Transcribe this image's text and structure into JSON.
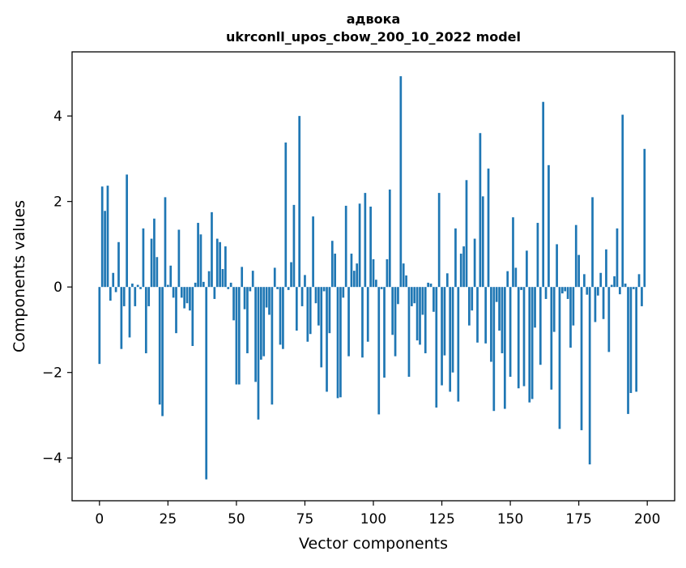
{
  "chart_data": {
    "type": "bar",
    "title_line1": "адвока",
    "title_line2": "ukrconll_upos_cbow_200_10_2022 model",
    "xlabel": "Vector components",
    "ylabel": "Components values",
    "xlim": [
      -10,
      210
    ],
    "ylim": [
      -5,
      5.5
    ],
    "xticks": [
      0,
      25,
      50,
      75,
      100,
      125,
      150,
      175,
      200
    ],
    "xtick_labels": [
      "0",
      "25",
      "50",
      "75",
      "100",
      "125",
      "150",
      "175",
      "200"
    ],
    "yticks": [
      -4,
      -2,
      0,
      2,
      4
    ],
    "ytick_labels": [
      "−4",
      "−2",
      "0",
      "2",
      "4"
    ],
    "bar_color": "#1f77b4",
    "grid": false,
    "x": [
      0,
      1,
      2,
      3,
      4,
      5,
      6,
      7,
      8,
      9,
      10,
      11,
      12,
      13,
      14,
      15,
      16,
      17,
      18,
      19,
      20,
      21,
      22,
      23,
      24,
      25,
      26,
      27,
      28,
      29,
      30,
      31,
      32,
      33,
      34,
      35,
      36,
      37,
      38,
      39,
      40,
      41,
      42,
      43,
      44,
      45,
      46,
      47,
      48,
      49,
      50,
      51,
      52,
      53,
      54,
      55,
      56,
      57,
      58,
      59,
      60,
      61,
      62,
      63,
      64,
      65,
      66,
      67,
      68,
      69,
      70,
      71,
      72,
      73,
      74,
      75,
      76,
      77,
      78,
      79,
      80,
      81,
      82,
      83,
      84,
      85,
      86,
      87,
      88,
      89,
      90,
      91,
      92,
      93,
      94,
      95,
      96,
      97,
      98,
      99,
      100,
      101,
      102,
      103,
      104,
      105,
      106,
      107,
      108,
      109,
      110,
      111,
      112,
      113,
      114,
      115,
      116,
      117,
      118,
      119,
      120,
      121,
      122,
      123,
      124,
      125,
      126,
      127,
      128,
      129,
      130,
      131,
      132,
      133,
      134,
      135,
      136,
      137,
      138,
      139,
      140,
      141,
      142,
      143,
      144,
      145,
      146,
      147,
      148,
      149,
      150,
      151,
      152,
      153,
      154,
      155,
      156,
      157,
      158,
      159,
      160,
      161,
      162,
      163,
      164,
      165,
      166,
      167,
      168,
      169,
      170,
      171,
      172,
      173,
      174,
      175,
      176,
      177,
      178,
      179,
      180,
      181,
      182,
      183,
      184,
      185,
      186,
      187,
      188,
      189,
      190,
      191,
      192,
      193,
      194,
      195,
      196,
      197,
      198,
      199
    ],
    "values": [
      -1.8,
      2.35,
      1.78,
      2.37,
      -0.32,
      0.33,
      -0.12,
      1.05,
      -1.45,
      -0.45,
      2.63,
      -1.18,
      0.08,
      -0.45,
      0.05,
      -0.05,
      1.37,
      -1.55,
      -0.45,
      1.13,
      1.6,
      0.7,
      -2.75,
      -3.02,
      2.1,
      0.05,
      0.5,
      -0.25,
      -1.08,
      1.34,
      -0.25,
      -0.5,
      -0.38,
      -0.55,
      -1.38,
      0.1,
      1.5,
      1.23,
      0.12,
      -4.5,
      0.37,
      1.75,
      -0.28,
      1.13,
      1.05,
      0.42,
      0.95,
      -0.05,
      0.1,
      -0.78,
      -2.28,
      -2.28,
      0.47,
      -0.52,
      -1.55,
      -0.1,
      0.38,
      -2.22,
      -3.1,
      -1.7,
      -1.62,
      -0.48,
      -0.65,
      -2.75,
      0.45,
      -0.05,
      -1.35,
      -1.45,
      3.38,
      -0.07,
      0.58,
      1.92,
      -1.02,
      4.0,
      -0.45,
      0.28,
      -1.28,
      -1.1,
      1.65,
      -0.38,
      -0.9,
      -1.88,
      -0.1,
      -2.45,
      -1.08,
      1.08,
      0.78,
      -2.6,
      -2.58,
      -0.25,
      1.9,
      -1.62,
      0.78,
      0.38,
      0.55,
      1.95,
      -1.65,
      2.2,
      -1.28,
      1.88,
      0.65,
      0.17,
      -2.98,
      -0.05,
      -2.12,
      0.65,
      2.28,
      -1.12,
      -1.62,
      -0.4,
      4.93,
      0.55,
      0.27,
      -2.1,
      -0.45,
      -0.38,
      -1.25,
      -1.35,
      -0.65,
      -1.55,
      0.1,
      0.08,
      -0.58,
      -2.82,
      2.2,
      -2.3,
      -1.6,
      0.32,
      -2.45,
      -2.0,
      1.37,
      -2.68,
      0.78,
      0.95,
      2.5,
      -0.9,
      -0.55,
      1.13,
      -1.3,
      3.6,
      2.12,
      -1.32,
      2.77,
      -1.75,
      -2.9,
      -0.35,
      -1.02,
      -1.55,
      -2.85,
      0.37,
      -2.1,
      1.63,
      0.45,
      -2.37,
      -0.07,
      -2.32,
      0.85,
      -2.7,
      -2.62,
      -0.95,
      1.5,
      -1.82,
      4.33,
      -0.28,
      2.85,
      -2.4,
      -1.05,
      1.0,
      -3.32,
      -0.15,
      -0.1,
      -0.28,
      -1.42,
      -0.9,
      1.45,
      0.75,
      -3.35,
      0.3,
      -0.18,
      -4.15,
      2.1,
      -0.82,
      -0.2,
      0.33,
      -0.75,
      0.88,
      -1.52,
      0.05,
      0.25,
      1.37,
      -0.17,
      4.03,
      0.08,
      -2.97,
      -2.48,
      -0.05,
      -2.45,
      0.3,
      -0.45,
      3.23
    ]
  }
}
